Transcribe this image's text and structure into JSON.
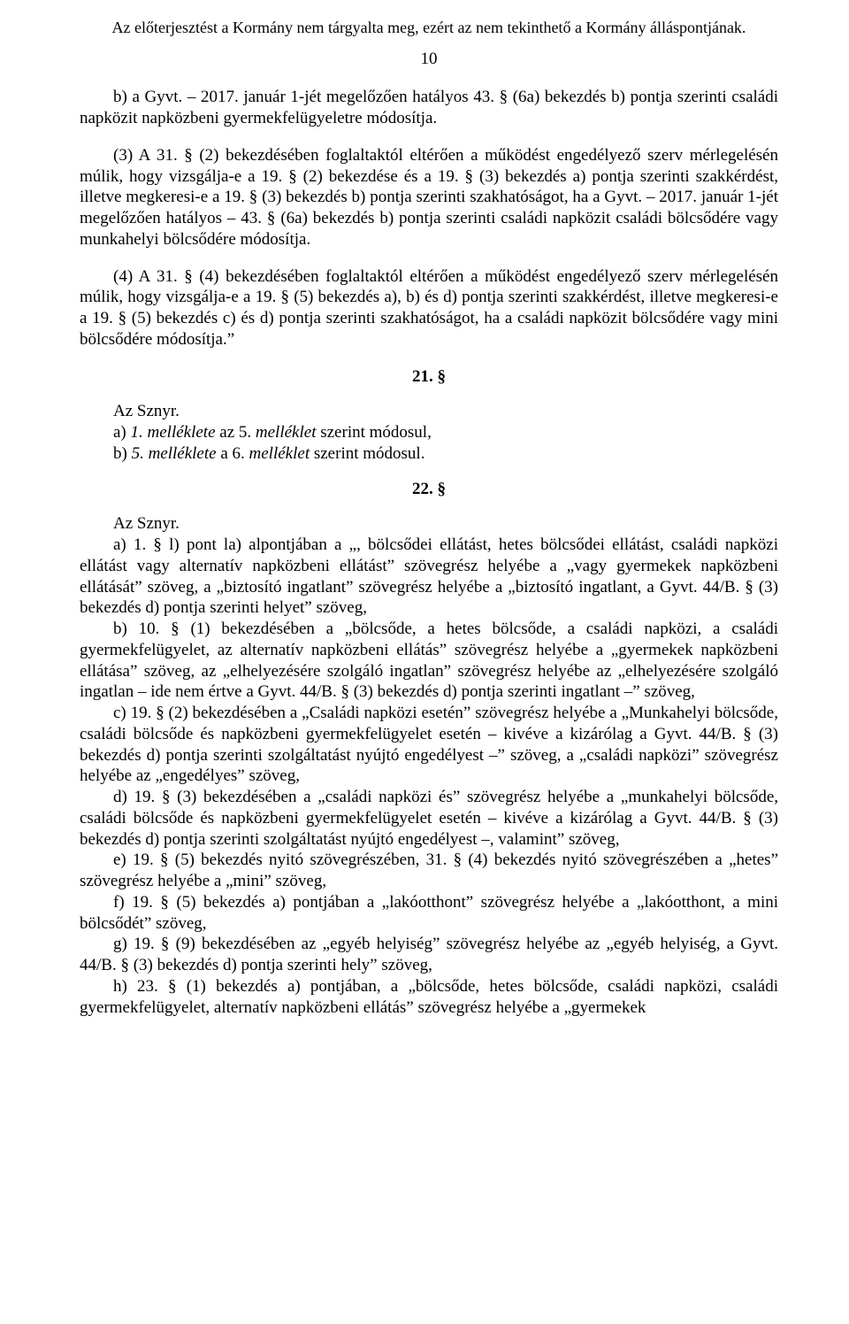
{
  "header": "Az előterjesztést a Kormány nem tárgyalta meg, ezért az nem tekinthető a Kormány álláspontjának.",
  "pageNumber": "10",
  "p1": "b) a Gyvt. – 2017. január 1-jét megelőzően hatályos 43. § (6a) bekezdés b) pontja szerinti családi napközit napközbeni gyermekfelügyeletre módosítja.",
  "p2": "(3) A 31. § (2) bekezdésében foglaltaktól eltérően a működést engedélyező szerv mérlegelésén múlik, hogy vizsgálja-e a 19. § (2) bekezdése és a 19. § (3) bekezdés a) pontja szerinti szakkérdést, illetve megkeresi-e a 19. § (3) bekezdés b) pontja szerinti szakhatóságot, ha a Gyvt. – 2017. január 1-jét megelőzően hatályos – 43. § (6a) bekezdés b) pontja szerinti családi napközit családi bölcsődére vagy munkahelyi bölcsődére módosítja.",
  "p3": "(4) A 31. § (4) bekezdésében foglaltaktól eltérően a működést engedélyező szerv mérlegelésén múlik, hogy vizsgálja-e a 19. § (5) bekezdés a), b) és d) pontja szerinti szakkérdést, illetve megkeresi-e a 19. § (5) bekezdés c) és d) pontja szerinti szakhatóságot, ha a családi napközit bölcsődére vagy mini bölcsődére módosítja.”",
  "s21": "21. §",
  "list21_intro": "Az Sznyr.",
  "list21_a_pre": "a) ",
  "list21_a_it": "1. melléklete",
  "list21_a_mid": " az 5. ",
  "list21_a_it2": "melléklet",
  "list21_a_post": " szerint módosul,",
  "list21_b_pre": "b) ",
  "list21_b_it": "5. melléklete",
  "list21_b_mid": " a 6. ",
  "list21_b_it2": "melléklet",
  "list21_b_post": " szerint módosul.",
  "s22": "22. §",
  "list22_intro": "Az Sznyr.",
  "p22a": "a) 1. § l) pont la) alpontjában a „, bölcsődei ellátást, hetes bölcsődei ellátást, családi napközi ellátást vagy alternatív napközbeni ellátást” szövegrész helyébe a „vagy gyermekek napközbeni ellátását” szöveg, a „biztosító ingatlant” szövegrész helyébe a „biztosító ingatlant, a Gyvt. 44/B. § (3) bekezdés d) pontja szerinti helyet” szöveg,",
  "p22b": "b) 10. § (1) bekezdésében a „bölcsőde, a hetes bölcsőde, a családi napközi, a családi gyermekfelügyelet, az alternatív napközbeni ellátás” szövegrész helyébe a „gyermekek napközbeni ellátása” szöveg, az „elhelyezésére szolgáló ingatlan” szövegrész helyébe az „elhelyezésére szolgáló ingatlan – ide nem értve a Gyvt. 44/B. § (3) bekezdés d) pontja szerinti ingatlant –” szöveg,",
  "p22c": "c) 19. § (2) bekezdésében a „Családi napközi esetén” szövegrész helyébe a „Munkahelyi bölcsőde, családi bölcsőde és napközbeni gyermekfelügyelet esetén – kivéve a kizárólag a Gyvt. 44/B. § (3) bekezdés d) pontja szerinti szolgáltatást nyújtó engedélyest –” szöveg, a „családi napközi” szövegrész helyébe az „engedélyes” szöveg,",
  "p22d": "d) 19. § (3) bekezdésében a „családi napközi és” szövegrész helyébe a „munkahelyi bölcsőde, családi bölcsőde és napközbeni gyermekfelügyelet esetén – kivéve a kizárólag a Gyvt. 44/B. § (3) bekezdés d) pontja szerinti szolgáltatást nyújtó engedélyest –, valamint” szöveg,",
  "p22e": "e) 19. § (5) bekezdés nyitó szövegrészében, 31. § (4) bekezdés nyitó szövegrészében a „hetes” szövegrész helyébe a „mini” szöveg,",
  "p22f": "f) 19. § (5) bekezdés a) pontjában a „lakóotthont” szövegrész helyébe a „lakóotthont, a mini bölcsődét” szöveg,",
  "p22g": "g) 19. § (9) bekezdésében az „egyéb helyiség” szövegrész helyébe az „egyéb helyiség, a Gyvt. 44/B. § (3) bekezdés d) pontja szerinti hely” szöveg,",
  "p22h": "h) 23. § (1) bekezdés a) pontjában, a „bölcsőde, hetes bölcsőde, családi napközi, családi gyermekfelügyelet, alternatív napközbeni ellátás” szövegrész helyébe a „gyermekek"
}
